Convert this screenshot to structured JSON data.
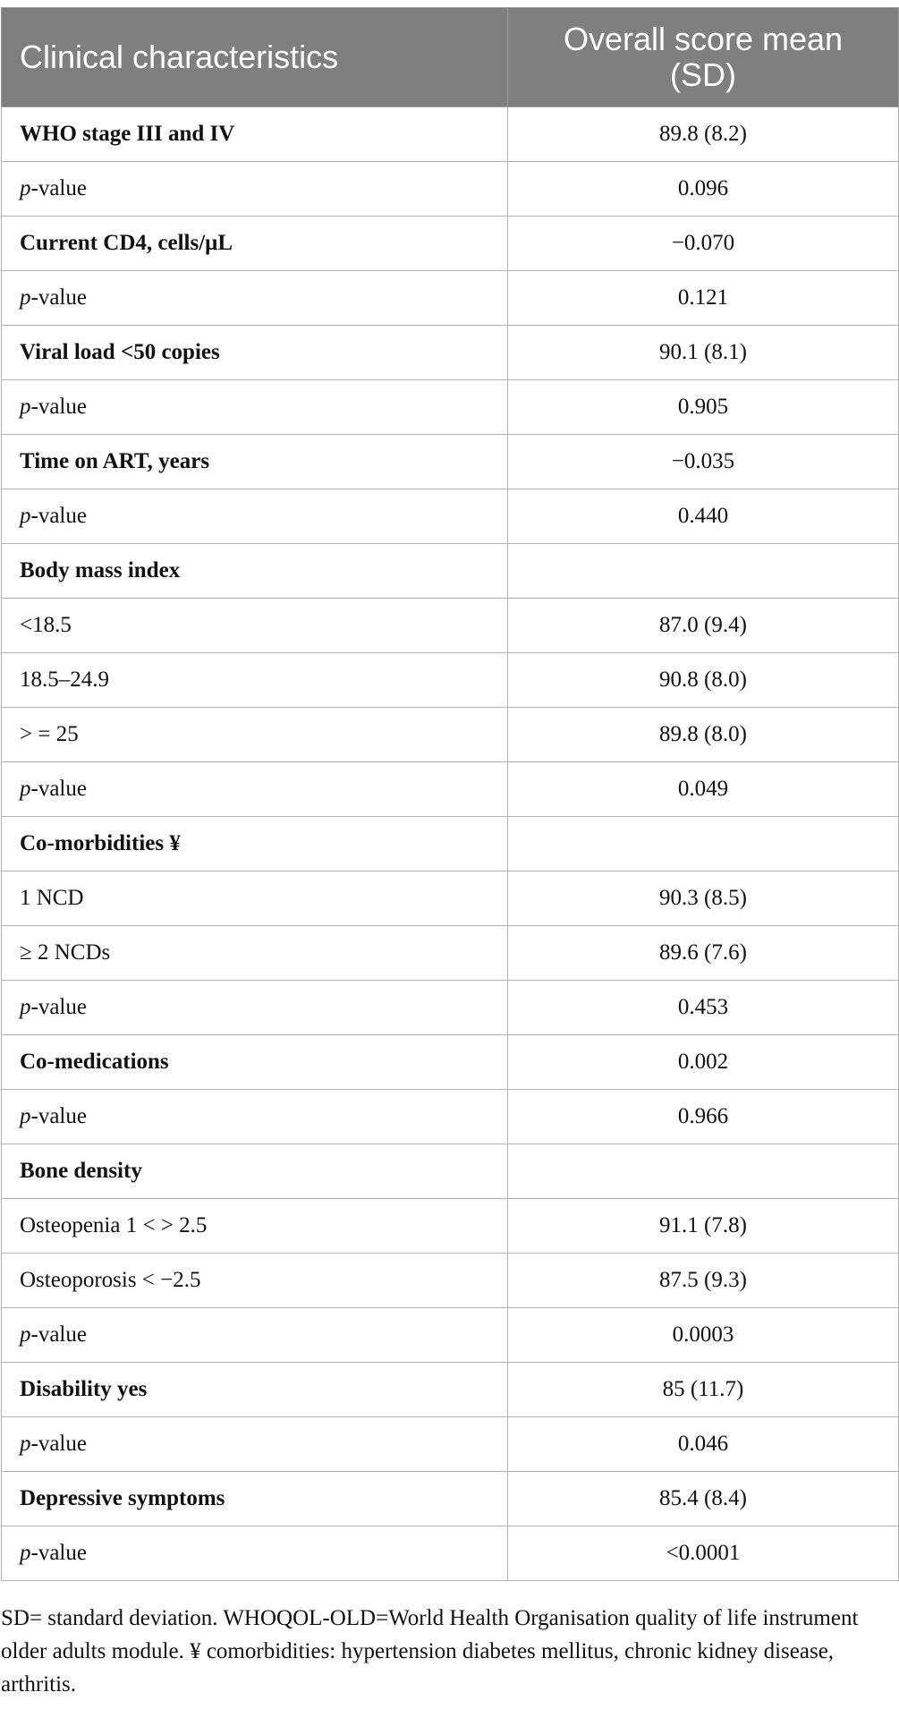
{
  "header": {
    "col1": "Clinical characteristics",
    "col2": "Overall score mean (SD)"
  },
  "rows": [
    {
      "label": "WHO stage III and IV",
      "value": "89.8 (8.2)",
      "bold": true
    },
    {
      "label": "p-value",
      "value": "0.096",
      "pvalue": true
    },
    {
      "label": "Current CD4, cells/μL",
      "value": "−0.070",
      "bold": true
    },
    {
      "label": "p-value",
      "value": "0.121",
      "pvalue": true
    },
    {
      "label": "Viral load <50 copies",
      "value": "90.1 (8.1)",
      "bold": true
    },
    {
      "label": "p-value",
      "value": "0.905",
      "pvalue": true
    },
    {
      "label": "Time on ART, years",
      "value": "−0.035",
      "bold": true
    },
    {
      "label": "p-value",
      "value": "0.440",
      "pvalue": true
    },
    {
      "label": "Body mass index",
      "value": "",
      "bold": true
    },
    {
      "label": "<18.5",
      "value": "87.0 (9.4)"
    },
    {
      "label": "18.5–24.9",
      "value": "90.8 (8.0)"
    },
    {
      "label": "> = 25",
      "value": "89.8 (8.0)"
    },
    {
      "label": "p-value",
      "value": "0.049",
      "pvalue": true
    },
    {
      "label": "Co-morbidities ¥",
      "value": "",
      "bold": true
    },
    {
      "label": "1 NCD",
      "value": "90.3 (8.5)"
    },
    {
      "label": "≥ 2 NCDs",
      "value": "89.6 (7.6)"
    },
    {
      "label": "p-value",
      "value": "0.453",
      "pvalue": true
    },
    {
      "label": "Co-medications",
      "value": "0.002",
      "bold": true
    },
    {
      "label": "p-value",
      "value": "0.966",
      "pvalue": true
    },
    {
      "label": "Bone density",
      "value": "",
      "bold": true
    },
    {
      "label": "Osteopenia 1 < > 2.5",
      "value": "91.1 (7.8)"
    },
    {
      "label": "Osteoporosis < −2.5",
      "value": "87.5 (9.3)"
    },
    {
      "label": "p-value",
      "value": "0.0003",
      "pvalue": true
    },
    {
      "label": "Disability yes",
      "value": "85 (11.7)",
      "bold": true
    },
    {
      "label": "p-value",
      "value": "0.046",
      "pvalue": true
    },
    {
      "label": "Depressive symptoms",
      "value": "85.4 (8.4)",
      "bold": true
    },
    {
      "label": "p-value",
      "value": "<0.0001",
      "pvalue": true
    }
  ],
  "footnote": "SD= standard deviation. WHOQOL-OLD=World Health Organisation quality of life instrument older adults module. ¥ comorbidities: hypertension diabetes mellitus, chronic kidney disease, arthritis.",
  "colors": {
    "header_bg": "#7f7f7f",
    "header_text": "#ffffff",
    "border": "#b3b3b3"
  }
}
